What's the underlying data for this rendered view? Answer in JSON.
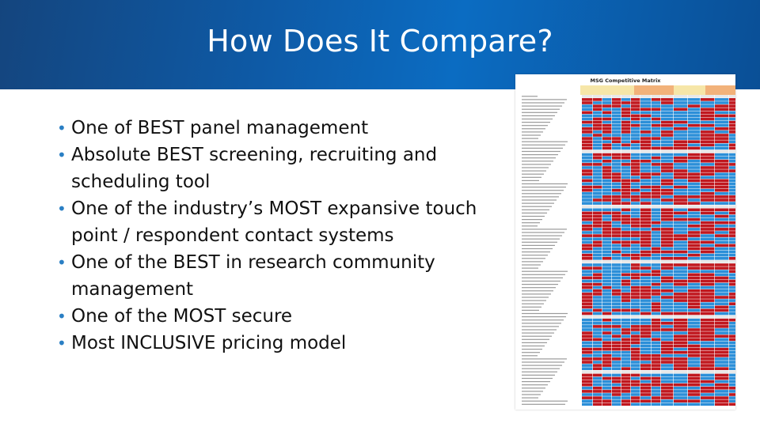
{
  "slide": {
    "title": "How Does It Compare?",
    "bullets": [
      "One of BEST panel management",
      "Absolute BEST screening, recruiting and scheduling tool",
      "One of the industry’s MOST expansive touch point / respondent contact systems",
      "One of the BEST in research community management",
      "One of the MOST secure",
      "Most INCLUSIVE pricing model"
    ],
    "colors": {
      "banner": "#0e5aa6",
      "bullet_dot": "#2a7fc4",
      "matrix_red": "#c0181f",
      "matrix_blue": "#2c8fd8",
      "matrix_header_orange": "#f2b27a",
      "matrix_header_yellow": "#f6e6a8"
    }
  },
  "matrix": {
    "title": "MSG Competitive Matrix"
  }
}
